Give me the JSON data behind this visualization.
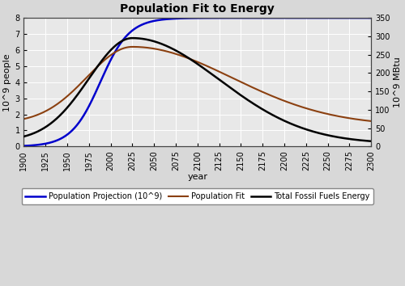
{
  "title": "Population Fit to Energy",
  "xlabel": "year",
  "ylabel_left": "10^9 people",
  "ylabel_right": "10^9 MBtu",
  "xlim": [
    1900,
    2300
  ],
  "ylim_left": [
    0,
    8
  ],
  "ylim_right": [
    0,
    350
  ],
  "xticks": [
    1900,
    1925,
    1950,
    1975,
    2000,
    2025,
    2050,
    2075,
    2100,
    2125,
    2150,
    2175,
    2200,
    2225,
    2250,
    2275,
    2300
  ],
  "yticks_left": [
    0,
    1,
    2,
    3,
    4,
    5,
    6,
    7,
    8
  ],
  "yticks_right": [
    0,
    50,
    100,
    150,
    200,
    250,
    300,
    350
  ],
  "line_colors": {
    "population_projection": "#0000CC",
    "population_fit": "#8B4010",
    "fossil_fuels": "#000000"
  },
  "legend_labels": [
    "Population Projection (10^9)",
    "Population Fit",
    "Total Fossil Fuels Energy"
  ],
  "plot_bg": "#E8E8E8",
  "fig_bg": "#D8D8D8",
  "grid_color": "#FFFFFF",
  "title_fontsize": 10,
  "label_fontsize": 8,
  "tick_fontsize": 7,
  "legend_fontsize": 7
}
